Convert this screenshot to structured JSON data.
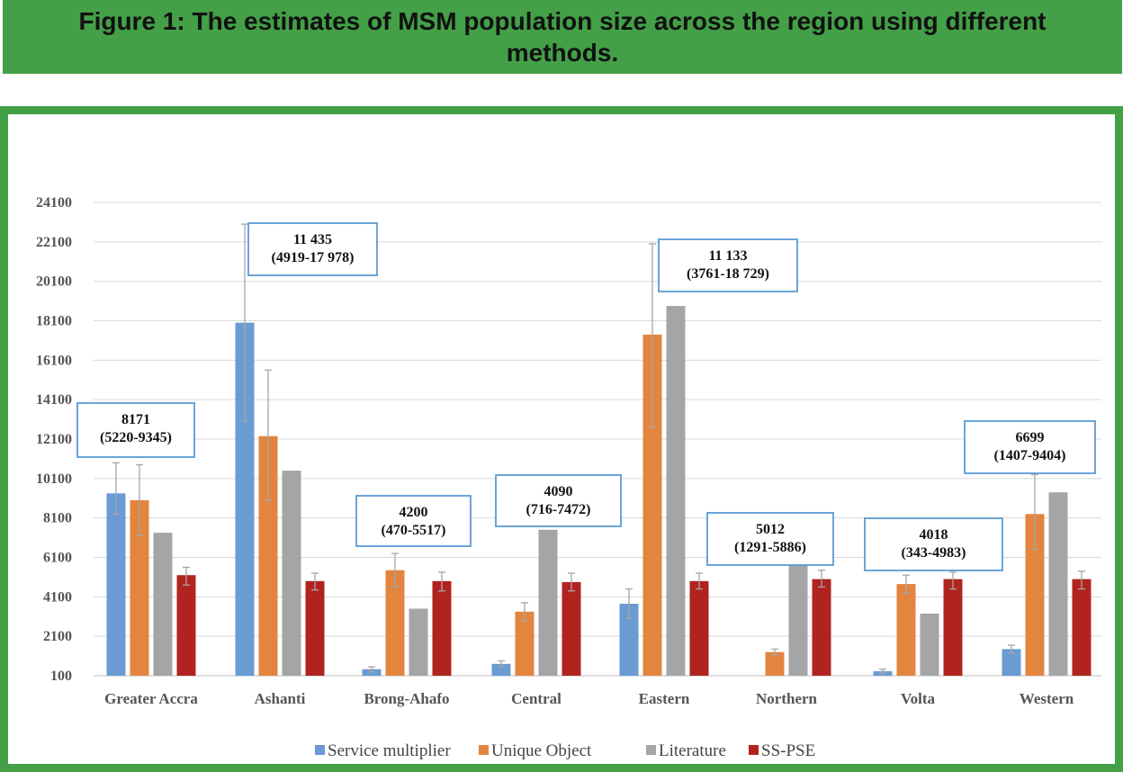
{
  "figure_title": "Figure 1: The estimates of MSM population size across the region using different methods.",
  "colors": {
    "title_bg": "#43a047",
    "frame": "#43a047",
    "grid": "#d9d9d9",
    "box": "#5b9bd5",
    "error": "#a6a6a6"
  },
  "chart_data": {
    "type": "bar",
    "title": "Figure 1: The estimates of MSM population size across the region using different methods.",
    "xlabel": "",
    "ylabel": "",
    "ylim": [
      100,
      24100
    ],
    "yticks": [
      "100",
      "2100",
      "4100",
      "6100",
      "8100",
      "10100",
      "12100",
      "14100",
      "16100",
      "18100",
      "20100",
      "22100",
      "24100"
    ],
    "grid": true,
    "legend_position": "bottom",
    "categories": [
      "Greater Accra",
      "Ashanti",
      "Brong-Ahafo",
      "Central",
      "Eastern",
      "Northern",
      "Volta",
      "Western"
    ],
    "series": [
      {
        "name": "Service multiplier",
        "color": "#6a9bd3",
        "values": [
          9350,
          18000,
          430,
          700,
          3750,
          100,
          330,
          1450
        ],
        "error": [
          [
            8300,
            10900
          ],
          [
            13000,
            23000
          ],
          [
            300,
            550
          ],
          [
            550,
            850
          ],
          [
            3000,
            4500
          ],
          null,
          [
            230,
            430
          ],
          [
            1250,
            1650
          ]
        ]
      },
      {
        "name": "Unique Object",
        "color": "#e3853f",
        "values": [
          9000,
          12250,
          5450,
          3350,
          17400,
          1300,
          4750,
          8300
        ],
        "error": [
          [
            7200,
            10800
          ],
          [
            9000,
            15600
          ],
          [
            4600,
            6300
          ],
          [
            2900,
            3800
          ],
          [
            12700,
            22000
          ],
          [
            1150,
            1450
          ],
          [
            4300,
            5200
          ],
          [
            6500,
            10300
          ]
        ]
      },
      {
        "name": "Literature",
        "color": "#a5a5a5",
        "values": [
          7350,
          10500,
          3500,
          7500,
          18850,
          5900,
          3250,
          9400
        ],
        "error": [
          null,
          null,
          null,
          null,
          null,
          null,
          null,
          null
        ]
      },
      {
        "name": "SS-PSE",
        "color": "#b1231f",
        "values": [
          5200,
          4900,
          4900,
          4850,
          4900,
          5000,
          5000,
          5000
        ],
        "error": [
          [
            4700,
            5600
          ],
          [
            4450,
            5300
          ],
          [
            4400,
            5350
          ],
          [
            4400,
            5300
          ],
          [
            4500,
            5300
          ],
          [
            4600,
            5450
          ],
          [
            4500,
            5350
          ],
          [
            4500,
            5400
          ]
        ]
      }
    ],
    "annotations": [
      {
        "category": "Greater Accra",
        "value": "8171",
        "range": "(5220-9345)"
      },
      {
        "category": "Ashanti",
        "value": "11 435",
        "range": "(4919-17 978)"
      },
      {
        "category": "Brong-Ahafo",
        "value": "4200",
        "range": "(470-5517)"
      },
      {
        "category": "Central",
        "value": "4090",
        "range": "(716-7472)"
      },
      {
        "category": "Eastern",
        "value": "11 133",
        "range": "(3761-18 729)"
      },
      {
        "category": "Northern",
        "value": "5012",
        "range": "(1291-5886)"
      },
      {
        "category": "Volta",
        "value": "4018",
        "range": "(343-4983)"
      },
      {
        "category": "Western",
        "value": "6699",
        "range": "(1407-9404)"
      }
    ]
  }
}
